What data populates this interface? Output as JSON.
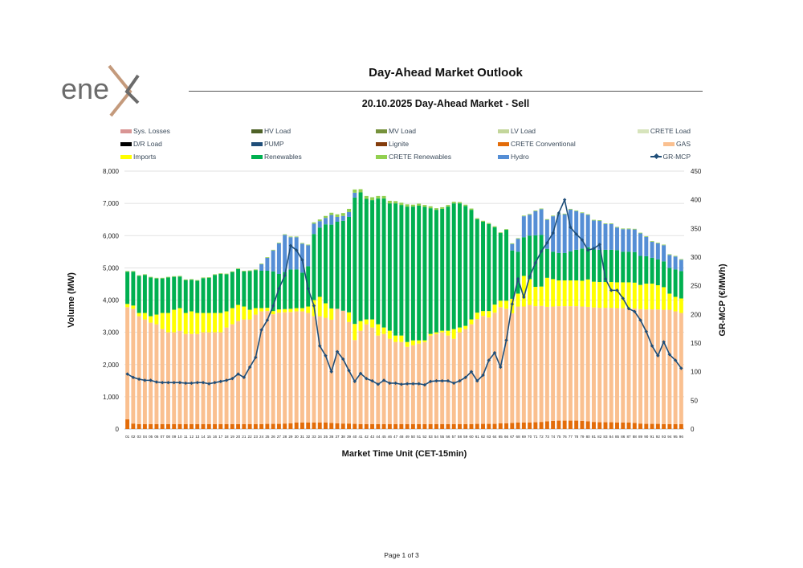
{
  "header": {
    "logo_text": "enex",
    "title": "Day-Ahead Market Outlook",
    "subtitle": "20.10.2025  Day-Ahead Market - Sell"
  },
  "footer": {
    "page_label": "Page 1 of 3"
  },
  "chart_data": {
    "type": "bar",
    "stacked": true,
    "title": "20.10.2025  Day-Ahead Market - Sell",
    "xlabel": "Market Time Unit (CET-15min)",
    "ylabel": "Volume (MW)",
    "y2label": "GR-MCP (€/MWh)",
    "ylim": [
      0,
      8000
    ],
    "y2lim": [
      0,
      450
    ],
    "yticks": [
      "0",
      "1,000",
      "2,000",
      "3,000",
      "4,000",
      "5,000",
      "6,000",
      "7,000",
      "8,000"
    ],
    "y2ticks": [
      "0",
      "50",
      "100",
      "150",
      "200",
      "250",
      "300",
      "350",
      "400",
      "450"
    ],
    "categories": [
      "01",
      "02",
      "03",
      "04",
      "05",
      "06",
      "07",
      "08",
      "09",
      "10",
      "11",
      "12",
      "13",
      "14",
      "15",
      "16",
      "17",
      "18",
      "19",
      "20",
      "21",
      "22",
      "23",
      "24",
      "25",
      "26",
      "27",
      "28",
      "29",
      "30",
      "31",
      "32",
      "33",
      "34",
      "35",
      "36",
      "37",
      "38",
      "39",
      "40",
      "41",
      "42",
      "43",
      "44",
      "45",
      "46",
      "47",
      "48",
      "49",
      "50",
      "51",
      "52",
      "53",
      "54",
      "55",
      "56",
      "57",
      "58",
      "59",
      "60",
      "61",
      "62",
      "63",
      "64",
      "65",
      "66",
      "67",
      "68",
      "69",
      "70",
      "71",
      "72",
      "73",
      "74",
      "75",
      "76",
      "77",
      "78",
      "79",
      "80",
      "81",
      "82",
      "83",
      "84",
      "85",
      "86",
      "87",
      "88",
      "89",
      "90",
      "91",
      "92",
      "93",
      "94",
      "95",
      "96"
    ],
    "legend": [
      {
        "name": "Sys. Losses",
        "color": "#d99594",
        "kind": "bar"
      },
      {
        "name": "HV Load",
        "color": "#4f6228",
        "kind": "bar"
      },
      {
        "name": "MV Load",
        "color": "#76923c",
        "kind": "bar"
      },
      {
        "name": "LV Load",
        "color": "#c3d69b",
        "kind": "bar"
      },
      {
        "name": "CRETE Load",
        "color": "#d7e4bc",
        "kind": "bar"
      },
      {
        "name": "D/R Load",
        "color": "#000000",
        "kind": "bar"
      },
      {
        "name": "PUMP",
        "color": "#1f4e79",
        "kind": "bar"
      },
      {
        "name": "Lignite",
        "color": "#843c0c",
        "kind": "bar"
      },
      {
        "name": "CRETE Conventional",
        "color": "#e36c09",
        "kind": "bar"
      },
      {
        "name": "GAS",
        "color": "#fac090",
        "kind": "bar"
      },
      {
        "name": "Imports",
        "color": "#ffff00",
        "kind": "bar"
      },
      {
        "name": "Renewables",
        "color": "#00b050",
        "kind": "bar"
      },
      {
        "name": "CRETE Renewables",
        "color": "#92d050",
        "kind": "bar"
      },
      {
        "name": "Hydro",
        "color": "#558ed5",
        "kind": "bar"
      },
      {
        "name": "GR-MCP",
        "color": "#1f4e79",
        "kind": "line"
      }
    ],
    "series": [
      {
        "name": "CRETE Conventional",
        "color": "#e36c09",
        "values": [
          300,
          170,
          150,
          150,
          150,
          150,
          150,
          150,
          150,
          150,
          150,
          150,
          150,
          150,
          150,
          150,
          150,
          150,
          150,
          150,
          150,
          150,
          150,
          150,
          160,
          160,
          160,
          170,
          180,
          200,
          200,
          200,
          200,
          200,
          200,
          190,
          180,
          170,
          170,
          160,
          150,
          150,
          150,
          150,
          150,
          150,
          150,
          150,
          150,
          150,
          150,
          150,
          150,
          150,
          150,
          150,
          150,
          150,
          150,
          150,
          160,
          160,
          160,
          160,
          180,
          180,
          190,
          200,
          200,
          200,
          210,
          220,
          240,
          250,
          260,
          260,
          260,
          260,
          250,
          240,
          220,
          210,
          210,
          210,
          200,
          200,
          200,
          190,
          170,
          160,
          160,
          160,
          150,
          150,
          150,
          150
        ]
      },
      {
        "name": "GAS",
        "color": "#fac090",
        "values": [
          3480,
          3560,
          3350,
          3250,
          3150,
          3100,
          2950,
          2850,
          2850,
          2900,
          2800,
          2800,
          2800,
          2850,
          2850,
          2850,
          2850,
          3000,
          3100,
          3200,
          3250,
          3250,
          3400,
          3500,
          3500,
          3400,
          3450,
          3450,
          3450,
          3450,
          3450,
          3400,
          3300,
          3300,
          3250,
          3200,
          3550,
          3500,
          3150,
          2600,
          2900,
          3100,
          3000,
          2750,
          2800,
          2650,
          2550,
          2550,
          2400,
          2450,
          2500,
          2550,
          2750,
          2800,
          2850,
          2750,
          2650,
          2850,
          2950,
          3100,
          3250,
          3350,
          3300,
          3450,
          3600,
          3550,
          3400,
          3600,
          3600,
          3650,
          3600,
          3600,
          3550,
          3550,
          3550,
          3550,
          3550,
          3550,
          3550,
          3550,
          3550,
          3550,
          3550,
          3550,
          3550,
          3550,
          3550,
          3550,
          3550,
          3550,
          3550,
          3550,
          3550,
          3550,
          3500,
          3450
        ]
      },
      {
        "name": "Imports",
        "color": "#ffff00",
        "values": [
          100,
          100,
          100,
          200,
          200,
          300,
          500,
          600,
          700,
          700,
          650,
          700,
          650,
          600,
          600,
          600,
          600,
          500,
          500,
          500,
          400,
          300,
          200,
          100,
          100,
          100,
          100,
          100,
          100,
          100,
          100,
          200,
          500,
          600,
          450,
          350,
          0,
          0,
          300,
          500,
          300,
          150,
          250,
          350,
          200,
          250,
          200,
          200,
          150,
          150,
          100,
          50,
          50,
          50,
          50,
          150,
          300,
          150,
          100,
          150,
          200,
          150,
          200,
          250,
          200,
          250,
          450,
          400,
          950,
          800,
          600,
          600,
          900,
          850,
          800,
          800,
          800,
          800,
          800,
          850,
          800,
          800,
          800,
          800,
          800,
          800,
          800,
          800,
          750,
          800,
          800,
          750,
          700,
          500,
          450,
          450
        ]
      },
      {
        "name": "Renewables",
        "color": "#00b050",
        "values": [
          1000,
          1050,
          1150,
          1180,
          1200,
          1120,
          1070,
          1100,
          1020,
          980,
          1020,
          980,
          1000,
          1080,
          1090,
          1180,
          1210,
          1150,
          1120,
          1110,
          1090,
          1200,
          1180,
          1160,
          1150,
          1230,
          1100,
          1150,
          1220,
          1200,
          1100,
          1250,
          2050,
          2150,
          2450,
          2600,
          2700,
          2790,
          2960,
          3920,
          3990,
          3740,
          3700,
          3900,
          4000,
          3950,
          4100,
          4050,
          4200,
          4150,
          4180,
          4140,
          3900,
          3800,
          3780,
          3850,
          3900,
          3850,
          3720,
          3400,
          2900,
          2770,
          2700,
          2400,
          2100,
          2200,
          1500,
          1300,
          1200,
          1350,
          1600,
          1600,
          900,
          850,
          850,
          850,
          900,
          950,
          1000,
          1000,
          1000,
          1000,
          1000,
          1000,
          1000,
          950,
          950,
          950,
          900,
          850,
          800,
          800,
          800,
          800,
          850,
          850
        ]
      },
      {
        "name": "Hydro",
        "color": "#558ed5",
        "values": [
          0,
          0,
          0,
          0,
          0,
          0,
          0,
          0,
          0,
          0,
          0,
          0,
          0,
          0,
          0,
          0,
          0,
          0,
          0,
          0,
          0,
          0,
          0,
          200,
          400,
          650,
          950,
          1150,
          1000,
          1000,
          900,
          650,
          320,
          200,
          200,
          300,
          150,
          150,
          150,
          150,
          0,
          0,
          0,
          0,
          0,
          0,
          0,
          0,
          0,
          0,
          0,
          0,
          0,
          0,
          0,
          0,
          0,
          0,
          0,
          0,
          0,
          0,
          0,
          0,
          0,
          0,
          200,
          400,
          650,
          650,
          750,
          800,
          900,
          1100,
          1200,
          1200,
          1300,
          1200,
          1100,
          1000,
          900,
          900,
          800,
          800,
          700,
          700,
          700,
          700,
          700,
          600,
          500,
          500,
          500,
          400,
          400,
          350
        ]
      },
      {
        "name": "CRETE Renewables",
        "color": "#92d050",
        "values": [
          20,
          20,
          20,
          20,
          20,
          20,
          20,
          20,
          20,
          20,
          20,
          20,
          20,
          20,
          20,
          20,
          20,
          20,
          20,
          20,
          20,
          20,
          20,
          20,
          20,
          20,
          20,
          20,
          20,
          20,
          20,
          20,
          40,
          50,
          60,
          70,
          80,
          90,
          100,
          100,
          100,
          90,
          90,
          80,
          80,
          80,
          70,
          70,
          70,
          60,
          60,
          60,
          60,
          50,
          50,
          50,
          50,
          40,
          40,
          40,
          30,
          30,
          30,
          30,
          20,
          20,
          20,
          20,
          20,
          20,
          20,
          20,
          20,
          20,
          20,
          20,
          20,
          20,
          20,
          20,
          20,
          20,
          20,
          20,
          20,
          20,
          20,
          20,
          20,
          20,
          20,
          20,
          20,
          20,
          20,
          20
        ]
      }
    ],
    "line": {
      "name": "GR-MCP",
      "color": "#1f4e79",
      "values": [
        96,
        90,
        87,
        85,
        85,
        82,
        81,
        81,
        81,
        81,
        80,
        80,
        81,
        81,
        79,
        81,
        83,
        85,
        88,
        96,
        90,
        108,
        125,
        173,
        190,
        215,
        245,
        268,
        320,
        312,
        295,
        245,
        215,
        145,
        128,
        100,
        135,
        122,
        102,
        83,
        97,
        88,
        84,
        78,
        85,
        80,
        80,
        78,
        79,
        79,
        79,
        77,
        83,
        84,
        84,
        84,
        80,
        84,
        90,
        100,
        84,
        94,
        120,
        133,
        108,
        155,
        218,
        262,
        230,
        266,
        290,
        310,
        325,
        342,
        377,
        400,
        352,
        340,
        330,
        312,
        315,
        322,
        262,
        242,
        242,
        228,
        210,
        205,
        190,
        170,
        145,
        128,
        152,
        130,
        120,
        106
      ]
    }
  }
}
